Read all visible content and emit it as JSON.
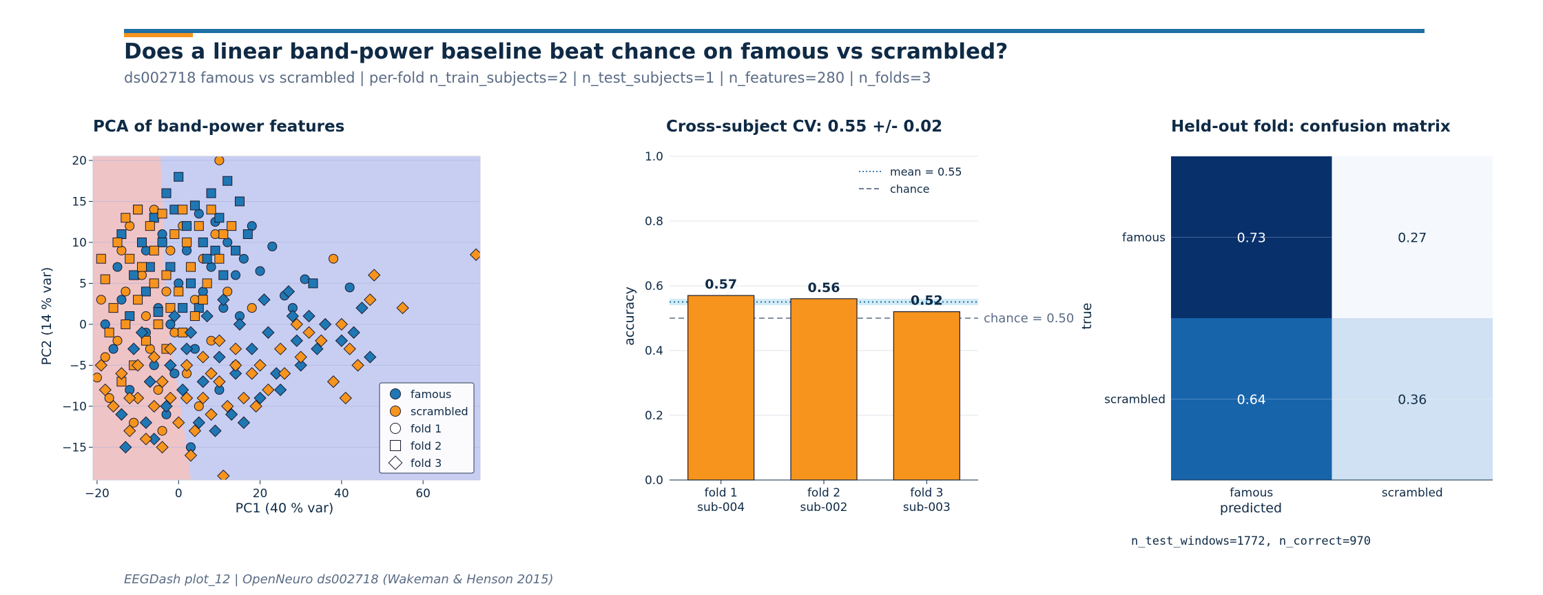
{
  "header": {
    "title": "Does a linear band-power baseline beat chance on famous vs scrambled?",
    "subtitle": "ds002718 famous vs scrambled | per-fold n_train_subjects=2 | n_test_subjects=1 | n_features=280 | n_folds=3",
    "footer": "EEGDash plot_12 | OpenNeuro ds002718 (Wakeman & Henson 2015)"
  },
  "colors": {
    "famous": "#1f77b4",
    "scrambled": "#f7941d",
    "accent_bar": "#1f6fa6",
    "accent_orange": "#f7941d",
    "region_famous": "#c8cef2",
    "region_scrambled": "#efc4c6",
    "text_dark": "#0f2a45",
    "text_muted": "#5a6b85",
    "cm_dark": "#08306b",
    "cm_mid": "#1764ab",
    "cm_light": "#cfe1f2",
    "cm_lightest": "#f5f9fe"
  },
  "chart_data": [
    {
      "type": "scatter",
      "title": "PCA of band-power features",
      "xlabel": "PC1 (40 % var)",
      "ylabel": "PC2 (14 % var)",
      "xlim": [
        -21,
        74
      ],
      "ylim": [
        -19,
        20.5
      ],
      "xticks": [
        -20,
        0,
        20,
        40,
        60
      ],
      "yticks": [
        -15,
        -10,
        -5,
        0,
        5,
        10,
        15,
        20
      ],
      "grid": true,
      "legend_position": "lower-right",
      "legend": [
        {
          "label": "famous",
          "marker": "circle",
          "filled": "famous"
        },
        {
          "label": "scrambled",
          "marker": "circle",
          "filled": "scrambled"
        },
        {
          "label": "fold 1",
          "marker": "circle",
          "filled": ""
        },
        {
          "label": "fold 2",
          "marker": "square",
          "filled": ""
        },
        {
          "label": "fold 3",
          "marker": "diamond",
          "filled": ""
        }
      ],
      "decision_boundary": [
        [
          -20.8,
          20.5
        ],
        [
          -4.5,
          20.5
        ],
        [
          -3.8,
          14
        ],
        [
          -3.6,
          8
        ],
        [
          -3,
          2
        ],
        [
          -1.5,
          -4
        ],
        [
          0.5,
          -10
        ],
        [
          2,
          -15
        ],
        [
          3,
          -19
        ]
      ],
      "points": {
        "fold1": {
          "famous": [
            [
              31,
              5.5
            ],
            [
              26,
              3.5
            ],
            [
              20,
              6.5
            ],
            [
              23,
              9.5
            ],
            [
              28,
              2
            ],
            [
              18,
              12
            ],
            [
              42,
              4.5
            ],
            [
              16,
              8
            ],
            [
              12,
              10
            ],
            [
              9,
              12.5
            ],
            [
              5,
              13.5
            ],
            [
              14,
              6
            ],
            [
              8,
              7
            ],
            [
              2,
              9
            ],
            [
              -4,
              11
            ],
            [
              -10,
              6
            ],
            [
              -14,
              3
            ],
            [
              -8,
              -1
            ],
            [
              -2,
              0
            ],
            [
              4,
              -3
            ],
            [
              -6,
              -5
            ],
            [
              -12,
              -8
            ],
            [
              -16,
              -3
            ],
            [
              -3,
              -11
            ],
            [
              3,
              -15
            ],
            [
              10,
              -8
            ],
            [
              6,
              4
            ],
            [
              0,
              5
            ],
            [
              -8,
              9
            ],
            [
              11,
              2
            ],
            [
              -5,
              2
            ],
            [
              -15,
              7
            ],
            [
              -18,
              0
            ],
            [
              15,
              1
            ],
            [
              -1,
              -6
            ]
          ],
          "scrambled": [
            [
              38,
              8
            ],
            [
              -20,
              -6.5
            ],
            [
              10,
              20
            ],
            [
              -19,
              3
            ],
            [
              -15,
              -2
            ],
            [
              -9,
              6
            ],
            [
              -3,
              4
            ],
            [
              -12,
              12
            ],
            [
              -6,
              14
            ],
            [
              1,
              12
            ],
            [
              6,
              8
            ],
            [
              12,
              4
            ],
            [
              18,
              2
            ],
            [
              -17,
              -9
            ],
            [
              -11,
              -12
            ],
            [
              -5,
              -8
            ],
            [
              2,
              -6
            ],
            [
              8,
              -2
            ],
            [
              -8,
              1
            ],
            [
              -2,
              9
            ],
            [
              -14,
              9
            ],
            [
              4,
              3
            ],
            [
              -7,
              -3
            ],
            [
              -1,
              -1
            ],
            [
              -13,
              4
            ],
            [
              5,
              -10
            ],
            [
              -18,
              -4
            ],
            [
              9,
              11
            ],
            [
              -4,
              -13
            ],
            [
              14,
              -5
            ]
          ]
        },
        "fold2": {
          "famous": [
            [
              15,
              15
            ],
            [
              12,
              17.5
            ],
            [
              8,
              16
            ],
            [
              4,
              14.5
            ],
            [
              2,
              12
            ],
            [
              0,
              18
            ],
            [
              -3,
              16
            ],
            [
              6,
              10
            ],
            [
              10,
              13
            ],
            [
              -6,
              13
            ],
            [
              -9,
              10
            ],
            [
              -2,
              7
            ],
            [
              3,
              5
            ],
            [
              -8,
              4
            ],
            [
              -12,
              1
            ],
            [
              -5,
              1.5
            ],
            [
              1,
              2
            ],
            [
              14,
              9
            ],
            [
              33,
              5
            ],
            [
              17,
              11
            ],
            [
              -1,
              14
            ],
            [
              7,
              8
            ],
            [
              -10,
              14
            ],
            [
              -14,
              11
            ],
            [
              11,
              6
            ],
            [
              -4,
              10
            ],
            [
              5,
              2
            ],
            [
              -7,
              7
            ],
            [
              9,
              9
            ],
            [
              -11,
              6
            ]
          ],
          "scrambled": [
            [
              -15,
              10
            ],
            [
              -18,
              5.5
            ],
            [
              -13,
              13
            ],
            [
              -10,
              14
            ],
            [
              -7,
              12
            ],
            [
              -4,
              13.5
            ],
            [
              -1,
              11
            ],
            [
              2,
              10
            ],
            [
              5,
              12
            ],
            [
              8,
              14
            ],
            [
              11,
              11
            ],
            [
              -12,
              8
            ],
            [
              -9,
              7
            ],
            [
              -6,
              5
            ],
            [
              -3,
              6
            ],
            [
              0,
              4
            ],
            [
              3,
              7
            ],
            [
              -16,
              2
            ],
            [
              -13,
              0
            ],
            [
              -10,
              3
            ],
            [
              -8,
              -2
            ],
            [
              -5,
              0
            ],
            [
              -2,
              2
            ],
            [
              1,
              -1
            ],
            [
              4,
              1
            ],
            [
              7,
              5
            ],
            [
              10,
              8
            ],
            [
              13,
              12
            ],
            [
              -11,
              -5
            ],
            [
              -14,
              -7
            ],
            [
              -17,
              -1
            ],
            [
              -6,
              9
            ],
            [
              -19,
              8
            ],
            [
              1,
              14
            ],
            [
              -3,
              -3
            ],
            [
              6,
              3
            ]
          ]
        },
        "fold3": {
          "famous": [
            [
              27,
              4
            ],
            [
              32,
              1
            ],
            [
              36,
              0
            ],
            [
              45,
              2
            ],
            [
              43,
              -1
            ],
            [
              47,
              -4
            ],
            [
              29,
              -2
            ],
            [
              24,
              -6
            ],
            [
              20,
              -9
            ],
            [
              16,
              -12
            ],
            [
              13,
              -11
            ],
            [
              9,
              -13
            ],
            [
              5,
              -12
            ],
            [
              1,
              -8
            ],
            [
              -3,
              -10
            ],
            [
              -8,
              -12
            ],
            [
              -13,
              -15
            ],
            [
              -6,
              -14
            ],
            [
              18,
              -3
            ],
            [
              22,
              -1
            ],
            [
              25,
              -8
            ],
            [
              14,
              -6
            ],
            [
              10,
              -4
            ],
            [
              6,
              -7
            ],
            [
              2,
              -3
            ],
            [
              -2,
              -5
            ],
            [
              -7,
              -7
            ],
            [
              -11,
              -3
            ],
            [
              15,
              0
            ],
            [
              11,
              3
            ],
            [
              7,
              1
            ],
            [
              3,
              -1
            ],
            [
              -1,
              1
            ],
            [
              30,
              -5
            ],
            [
              34,
              -3
            ],
            [
              21,
              3
            ],
            [
              28,
              1
            ],
            [
              40,
              -2
            ],
            [
              -14,
              -11
            ],
            [
              -9,
              -1
            ]
          ],
          "scrambled": [
            [
              48,
              6
            ],
            [
              55,
              2
            ],
            [
              73,
              8.5
            ],
            [
              47,
              3
            ],
            [
              40,
              0
            ],
            [
              42,
              -3
            ],
            [
              44,
              -5
            ],
            [
              38,
              -7
            ],
            [
              41,
              -9
            ],
            [
              11,
              -18.5
            ],
            [
              3,
              -16
            ],
            [
              35,
              -2
            ],
            [
              30,
              -4
            ],
            [
              26,
              -6
            ],
            [
              22,
              -8
            ],
            [
              19,
              -10
            ],
            [
              16,
              -9
            ],
            [
              12,
              -10
            ],
            [
              8,
              -11
            ],
            [
              4,
              -13
            ],
            [
              0,
              -12
            ],
            [
              -4,
              -15
            ],
            [
              -8,
              -14
            ],
            [
              -12,
              -13
            ],
            [
              -16,
              -10
            ],
            [
              -10,
              -9
            ],
            [
              -6,
              -10
            ],
            [
              -2,
              -9
            ],
            [
              2,
              -9
            ],
            [
              6,
              -9
            ],
            [
              10,
              -7
            ],
            [
              14,
              -5
            ],
            [
              18,
              -6
            ],
            [
              -14,
              -6
            ],
            [
              -10,
              -5
            ],
            [
              -6,
              -4
            ],
            [
              -2,
              -3
            ],
            [
              2,
              -5
            ],
            [
              6,
              -4
            ],
            [
              10,
              -2
            ],
            [
              14,
              -3
            ],
            [
              -18,
              -8
            ],
            [
              25,
              -3
            ],
            [
              32,
              -1
            ],
            [
              29,
              0
            ],
            [
              -19,
              -5
            ],
            [
              -12,
              -9
            ],
            [
              20,
              -5
            ],
            [
              8,
              -6
            ],
            [
              -4,
              -7
            ]
          ]
        }
      }
    },
    {
      "type": "bar",
      "title": "Cross-subject CV: 0.55 +/- 0.02",
      "ylabel": "accuracy",
      "categories": [
        "fold 1\nsub-004",
        "fold 2\nsub-002",
        "fold 3\nsub-003"
      ],
      "values": [
        0.57,
        0.56,
        0.52
      ],
      "value_labels": [
        "0.57",
        "0.56",
        "0.52"
      ],
      "ylim": [
        0,
        1
      ],
      "yticks": [
        0.0,
        0.2,
        0.4,
        0.6,
        0.8,
        1.0
      ],
      "mean": 0.55,
      "std": 0.02,
      "chance": 0.5,
      "chance_label": "chance = 0.50",
      "legend": [
        {
          "label": "mean = 0.55",
          "style": "dotted"
        },
        {
          "label": "chance",
          "style": "dashed"
        }
      ],
      "legend_position": "top-right",
      "grid": true
    },
    {
      "type": "heatmap",
      "title": "Held-out fold: confusion matrix",
      "xlabel": "predicted",
      "ylabel": "true",
      "x_categories": [
        "famous",
        "scrambled"
      ],
      "y_categories": [
        "famous",
        "scrambled"
      ],
      "values": [
        [
          0.73,
          0.27
        ],
        [
          0.64,
          0.36
        ]
      ],
      "value_labels": [
        [
          "0.73",
          "0.27"
        ],
        [
          "0.64",
          "0.36"
        ]
      ],
      "caption": "n_test_windows=1772, n_correct=970"
    }
  ]
}
